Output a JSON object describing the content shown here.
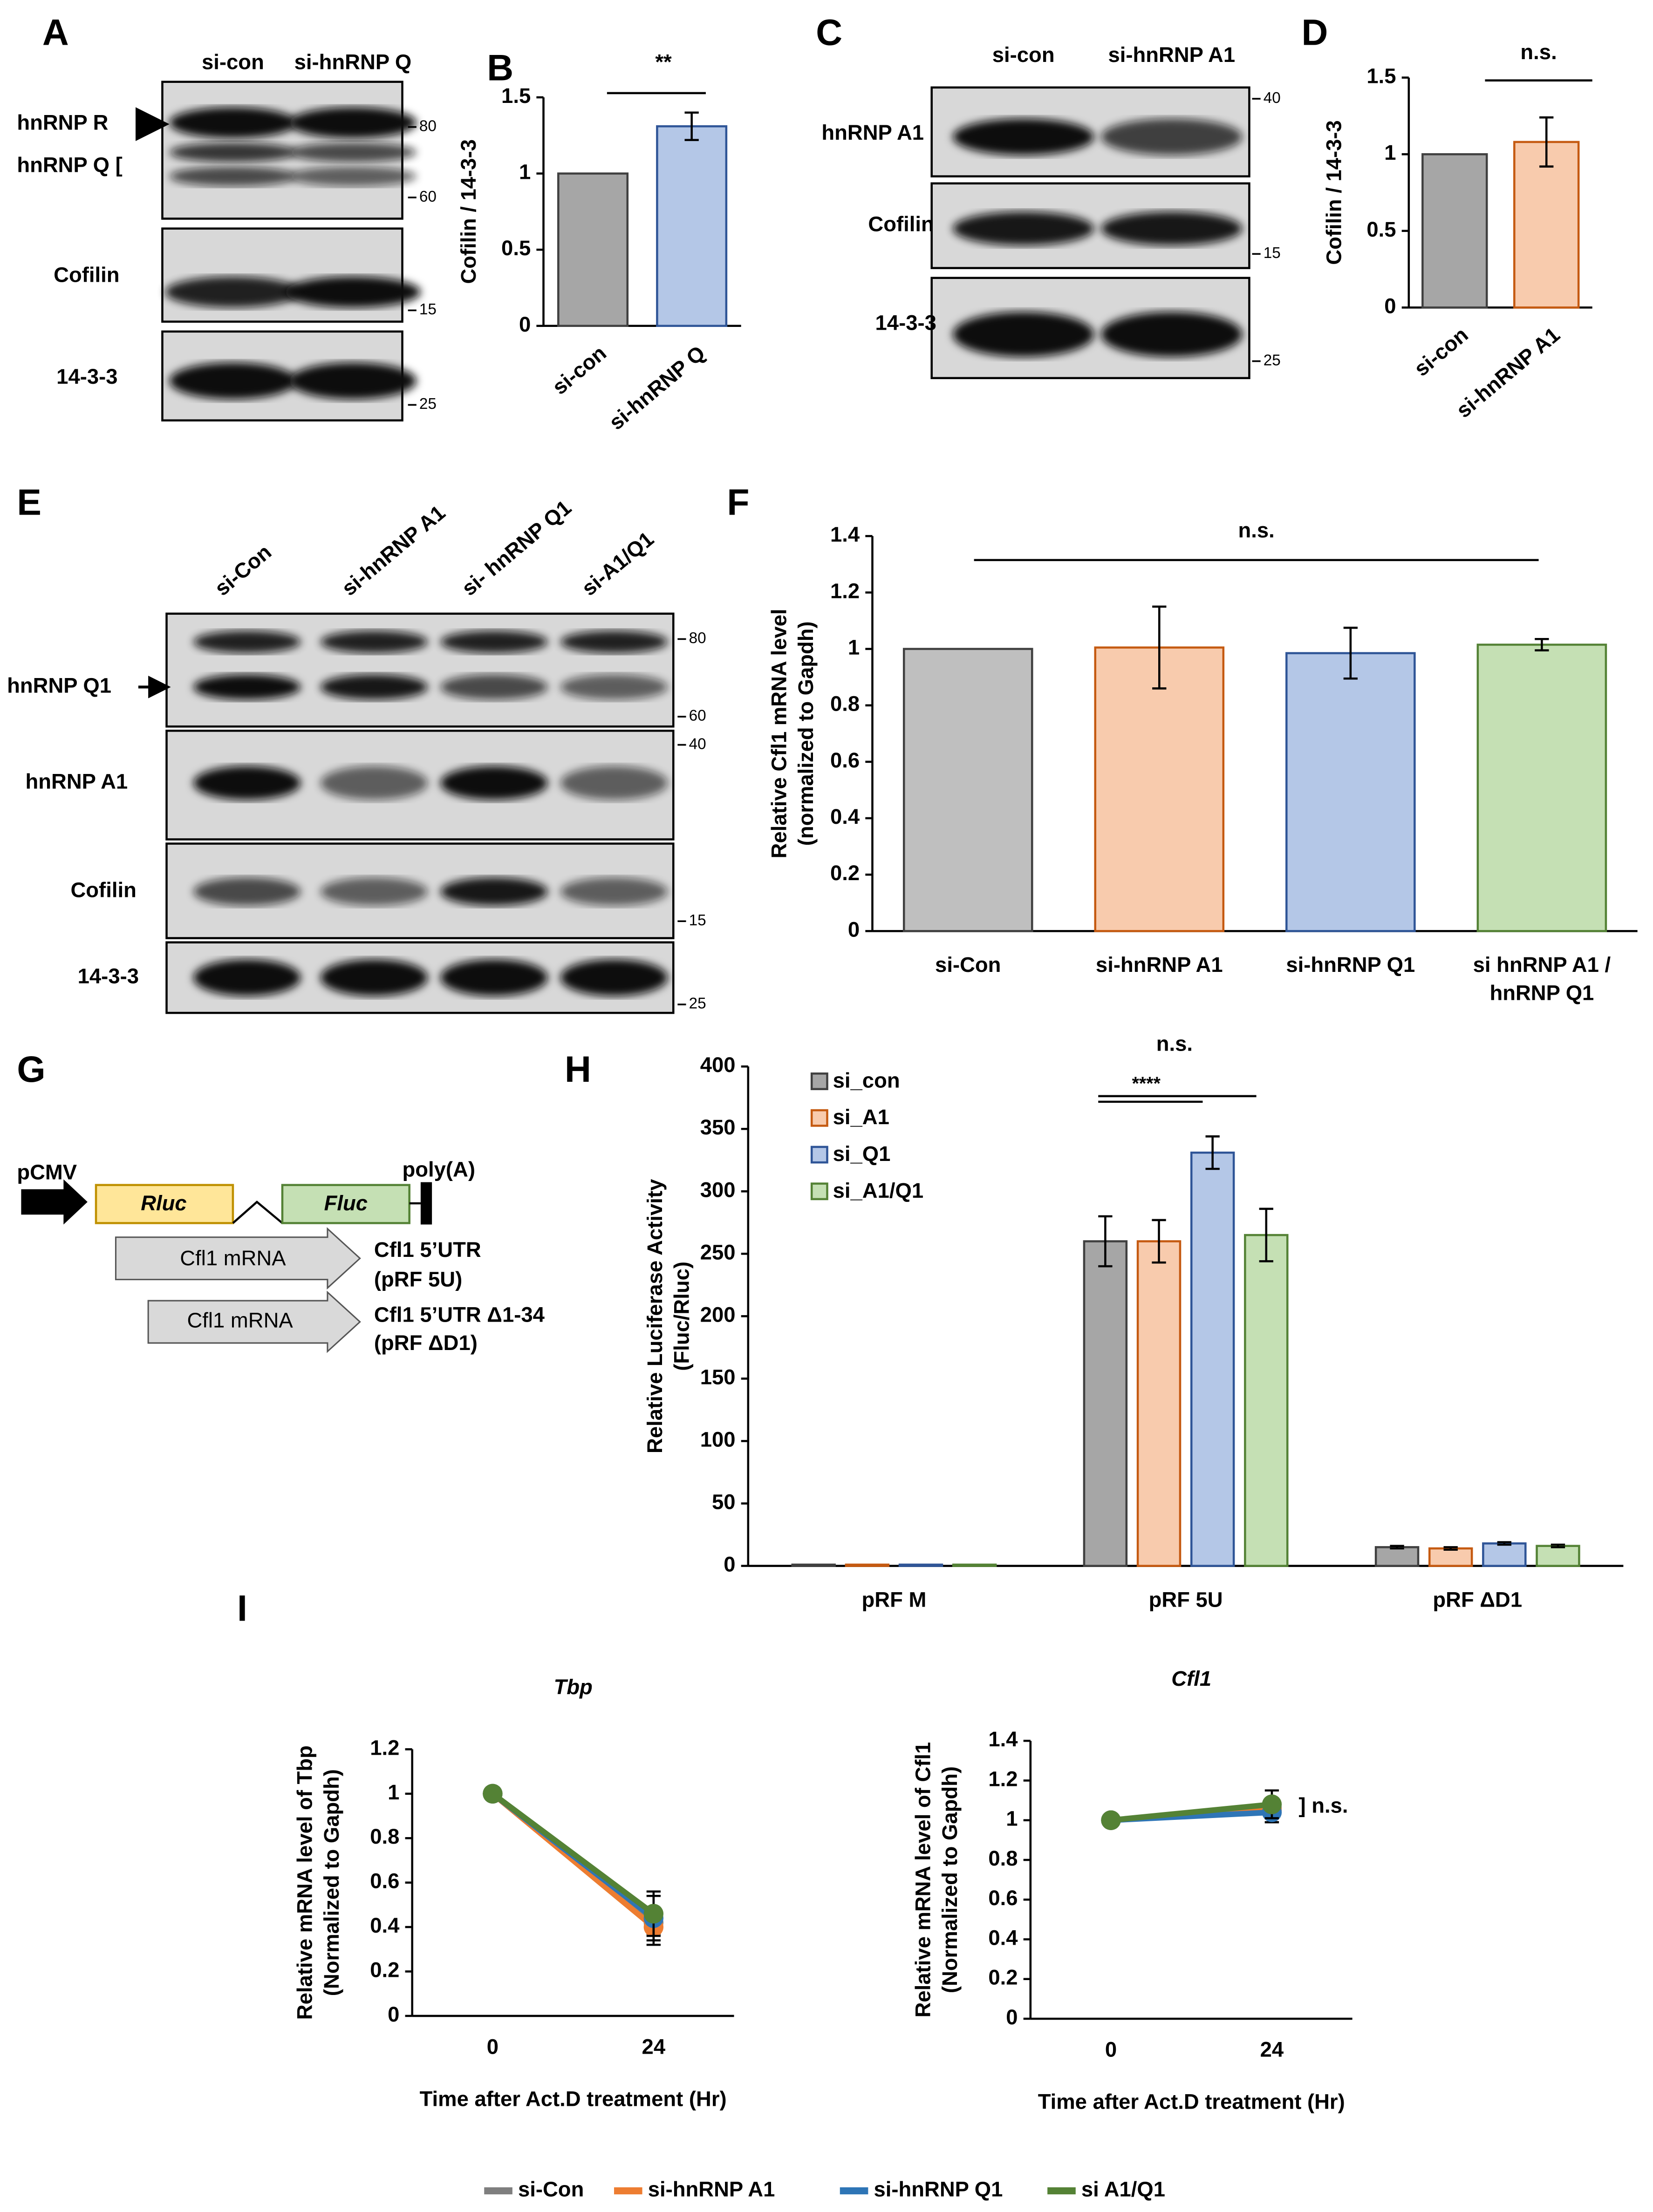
{
  "panel_labels": [
    "A",
    "B",
    "C",
    "D",
    "E",
    "F",
    "G",
    "H",
    "I"
  ],
  "blots": {
    "A": {
      "lanes": [
        "si-con",
        "si-hnRNP Q"
      ],
      "rows": [
        "hnRNP R",
        "hnRNP Q [",
        "Cofilin",
        "14-3-3"
      ],
      "markers": [
        80,
        60,
        15,
        25
      ]
    },
    "C": {
      "lanes": [
        "si-con",
        "si-hnRNP A1"
      ],
      "rows": [
        "hnRNP A1",
        "Cofilin",
        "14-3-3"
      ],
      "markers": [
        40,
        15,
        25
      ]
    },
    "E": {
      "lanes": [
        "si-Con",
        "si-hnRNP A1",
        "si- hnRNP Q1",
        "si-A1/Q1"
      ],
      "rows": [
        "hnRNP Q1",
        "hnRNP A1",
        "Cofilin",
        "14-3-3"
      ],
      "markers": [
        80,
        60,
        40,
        15,
        25
      ]
    }
  },
  "construct": {
    "promoter": "pCMV",
    "rluc": "Rluc",
    "fluc": "Fluc",
    "polya": "poly(A)",
    "mrna": [
      "Cfl1 mRNA",
      "Cfl1 mRNA"
    ],
    "labels": [
      "Cfl1 5’UTR",
      "(pRF 5U)",
      "Cfl1 5’UTR Δ1-34",
      "(pRF ΔD1)"
    ]
  },
  "chart_data": [
    {
      "type": "bar",
      "ylabel": "Cofilin / 14-3-3",
      "categories": [
        "si-con",
        "si-hnRNP Q"
      ],
      "values": [
        1,
        1.31
      ],
      "errors": [
        null,
        0.09
      ],
      "colors": [
        "#a6a6a6",
        "#b4c7e7"
      ],
      "edgecolors": [
        "#404040",
        "#2f5597"
      ],
      "ylim": [
        0,
        1.5
      ],
      "yticks": [
        0,
        0.5,
        1,
        1.5
      ],
      "annotations": [
        "**"
      ]
    },
    {
      "type": "bar",
      "ylabel": "Cofilin / 14-3-3",
      "categories": [
        "si-con",
        "si-hnRNP A1"
      ],
      "values": [
        1,
        1.08
      ],
      "errors": [
        null,
        0.16
      ],
      "colors": [
        "#a6a6a6",
        "#f8cbad"
      ],
      "edgecolors": [
        "#404040",
        "#c55a11"
      ],
      "ylim": [
        0,
        1.5
      ],
      "yticks": [
        0,
        0.5,
        1,
        1.5
      ],
      "annotations": [
        "n.s."
      ]
    },
    {
      "type": "bar",
      "ylabel": [
        "Relative Cfl1 mRNA level",
        "(normalized to Gapdh)"
      ],
      "categories": [
        "si-Con",
        "si-hnRNP A1",
        "si-hnRNP Q1",
        "si hnRNP A1 / hnRNP Q1"
      ],
      "values": [
        1,
        1.005,
        0.985,
        1.015
      ],
      "errors": [
        null,
        0.145,
        0.09,
        0.02
      ],
      "colors": [
        "#bfbfbf",
        "#f8cbad",
        "#b4c7e7",
        "#c5e0b4"
      ],
      "edgecolors": [
        "#404040",
        "#c55a11",
        "#2f5597",
        "#548235"
      ],
      "ylim": [
        0,
        1.4
      ],
      "yticks": [
        0,
        0.2,
        0.4,
        0.6,
        0.8,
        1,
        1.2,
        1.4
      ],
      "annotations": [
        "n.s."
      ]
    },
    {
      "type": "grouped_bar",
      "ylabel": [
        "Relative Luciferase Activity",
        "(Fluc/Rluc)"
      ],
      "categories": [
        "pRF M",
        "pRF 5U",
        "pRF ΔD1"
      ],
      "series": [
        {
          "name": "si_con",
          "color": "#a6a6a6",
          "edgecolor": "#404040",
          "values": [
            1,
            260,
            15
          ],
          "errors": [
            null,
            20,
            1
          ]
        },
        {
          "name": "si_A1",
          "color": "#f8cbad",
          "edgecolor": "#c55a11",
          "values": [
            1,
            260,
            14
          ],
          "errors": [
            null,
            17,
            1
          ]
        },
        {
          "name": "si_Q1",
          "color": "#b4c7e7",
          "edgecolor": "#2f5597",
          "values": [
            1,
            331,
            18
          ],
          "errors": [
            null,
            13,
            1
          ]
        },
        {
          "name": "si_A1/Q1",
          "color": "#c5e0b4",
          "edgecolor": "#548235",
          "values": [
            1,
            265,
            16
          ],
          "errors": [
            null,
            21,
            1
          ]
        }
      ],
      "ylim": [
        0,
        400
      ],
      "yticks": [
        0,
        50,
        100,
        150,
        200,
        250,
        300,
        350,
        400
      ],
      "annotations": [
        "n.s.",
        "****"
      ]
    },
    {
      "type": "line",
      "title": "Tbp",
      "ylabel": [
        "Relative mRNA level of Tbp",
        "(Normalized to Gapdh)"
      ],
      "xlabel": "Time after Act.D treatment (Hr)",
      "x": [
        0,
        24
      ],
      "xlim": [
        -12,
        36
      ],
      "xticks": [
        0,
        24
      ],
      "series": [
        {
          "name": "si-Con",
          "color": "#7f7f7f",
          "values": [
            1,
            0.42
          ],
          "errors": [
            null,
            0.05
          ]
        },
        {
          "name": "si-hnRNP A1",
          "color": "#ed7d31",
          "values": [
            1,
            0.4
          ],
          "errors": [
            null,
            0.08
          ]
        },
        {
          "name": "si-hnRNP Q1",
          "color": "#2e75b6",
          "values": [
            1,
            0.44
          ],
          "errors": [
            null,
            0.1
          ]
        },
        {
          "name": "si A1/Q1",
          "color": "#548235",
          "values": [
            1,
            0.46
          ],
          "errors": [
            null,
            0.1
          ]
        }
      ],
      "ylim": [
        0,
        1.2
      ],
      "yticks": [
        0,
        0.2,
        0.4,
        0.6,
        0.8,
        1,
        1.2
      ],
      "legend": true
    },
    {
      "type": "line",
      "title": "Cfl1",
      "ylabel": [
        "Relative mRNA level of Cfl1",
        "(Normalized to Gapdh)"
      ],
      "xlabel": "Time after Act.D treatment (Hr)",
      "x": [
        0,
        24
      ],
      "xlim": [
        -12,
        36
      ],
      "xticks": [
        0,
        24
      ],
      "series": [
        {
          "name": "si-Con",
          "color": "#7f7f7f",
          "values": [
            1,
            1.06
          ],
          "errors": [
            null,
            0.03
          ]
        },
        {
          "name": "si-hnRNP A1",
          "color": "#ed7d31",
          "values": [
            1,
            1.05
          ],
          "errors": [
            null,
            0.06
          ]
        },
        {
          "name": "si-hnRNP Q1",
          "color": "#2e75b6",
          "values": [
            1,
            1.04
          ],
          "errors": [
            null,
            0.05
          ]
        },
        {
          "name": "si A1/Q1",
          "color": "#548235",
          "values": [
            1,
            1.08
          ],
          "errors": [
            null,
            0.07
          ]
        }
      ],
      "ylim": [
        0,
        1.4
      ],
      "yticks": [
        0,
        0.2,
        0.4,
        0.6,
        0.8,
        1,
        1.2,
        1.4
      ],
      "annotations": [
        "] n.s."
      ],
      "legend": false
    }
  ]
}
